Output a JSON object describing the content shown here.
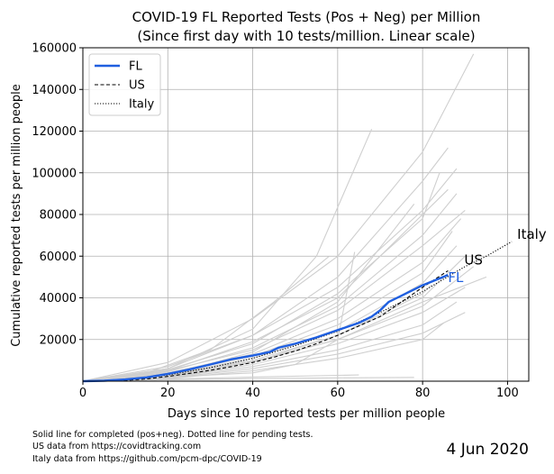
{
  "footer": {
    "line1": "Solid line for completed (pos+neg). Dotted line for pending tests.",
    "line2": "US data from https://covidtracking.com",
    "line3": "Italy data from https://github.com/pcm-dpc/COVID-19",
    "date": "4 Jun 2020"
  },
  "chart_data": {
    "type": "line",
    "title": "COVID-19 FL Reported Tests (Pos + Neg) per Million",
    "subtitle": "(Since first day with 10 tests/million. Linear scale)",
    "xlabel": "Days since 10 reported tests per million people",
    "ylabel": "Cumulative reported tests per million people",
    "xlim": [
      0,
      105
    ],
    "ylim": [
      0,
      160000
    ],
    "xticks": [
      0,
      20,
      40,
      60,
      80,
      100
    ],
    "yticks": [
      20000,
      40000,
      60000,
      80000,
      100000,
      120000,
      140000,
      160000
    ],
    "grid": true,
    "legend_position": "top-left",
    "legend": [
      "FL",
      "US",
      "Italy"
    ],
    "colors": {
      "FL": "#1f5fe0",
      "US": "#000000",
      "Italy": "#000000",
      "background_states": "#cfcfcf"
    },
    "series": [
      {
        "name": "FL",
        "style": "solid",
        "end_label": "FL",
        "x": [
          0,
          5,
          10,
          15,
          20,
          25,
          30,
          35,
          40,
          44,
          46,
          50,
          55,
          60,
          65,
          68,
          70,
          72,
          75,
          80,
          86
        ],
        "y": [
          0,
          200,
          800,
          1800,
          3500,
          5600,
          8000,
          10500,
          12300,
          14000,
          16000,
          18000,
          21000,
          24500,
          28000,
          31000,
          34000,
          38000,
          41000,
          46000,
          51000
        ]
      },
      {
        "name": "US",
        "style": "dashed",
        "end_label": "US",
        "x": [
          0,
          5,
          10,
          15,
          20,
          25,
          30,
          35,
          40,
          45,
          50,
          55,
          60,
          65,
          70,
          75,
          80,
          86
        ],
        "y": [
          0,
          100,
          400,
          1100,
          2300,
          3700,
          5200,
          7000,
          9000,
          11500,
          14500,
          18000,
          22000,
          26500,
          31000,
          38000,
          45000,
          53000
        ]
      },
      {
        "name": "Italy",
        "style": "dotted",
        "end_label": "Italy",
        "x": [
          0,
          10,
          20,
          30,
          40,
          50,
          60,
          70,
          80,
          90,
          95,
          101
        ],
        "y": [
          0,
          500,
          3000,
          6500,
          11000,
          17000,
          24000,
          33000,
          43000,
          55000,
          60000,
          67000
        ]
      }
    ],
    "background_series": [
      {
        "x": [
          0,
          20,
          40,
          60,
          80,
          92
        ],
        "y": [
          0,
          9000,
          30000,
          60000,
          110000,
          157000
        ]
      },
      {
        "x": [
          0,
          20,
          40,
          55,
          68
        ],
        "y": [
          0,
          6000,
          25000,
          60000,
          121000
        ]
      },
      {
        "x": [
          0,
          20,
          40,
          60,
          80,
          88
        ],
        "y": [
          0,
          7000,
          22000,
          45000,
          82000,
          102000
        ]
      },
      {
        "x": [
          0,
          20,
          40,
          60,
          80,
          86
        ],
        "y": [
          0,
          5000,
          19000,
          40000,
          80000,
          92000
        ]
      },
      {
        "x": [
          0,
          20,
          40,
          60,
          80,
          90
        ],
        "y": [
          0,
          5000,
          15000,
          34000,
          65000,
          82000
        ]
      },
      {
        "x": [
          0,
          20,
          40,
          60,
          80,
          89
        ],
        "y": [
          0,
          4000,
          13000,
          30000,
          57000,
          78000
        ]
      },
      {
        "x": [
          0,
          20,
          40,
          60,
          80,
          87
        ],
        "y": [
          0,
          3500,
          12000,
          27000,
          52000,
          72000
        ]
      },
      {
        "x": [
          0,
          20,
          40,
          60,
          80,
          88
        ],
        "y": [
          0,
          3000,
          11000,
          24000,
          47000,
          65000
        ]
      },
      {
        "x": [
          0,
          20,
          40,
          60,
          80,
          95
        ],
        "y": [
          0,
          2500,
          9000,
          20000,
          38000,
          50000
        ]
      },
      {
        "x": [
          0,
          20,
          40,
          60,
          80,
          90
        ],
        "y": [
          0,
          2000,
          8000,
          18000,
          33000,
          45000
        ]
      },
      {
        "x": [
          0,
          20,
          40,
          60,
          80,
          88
        ],
        "y": [
          0,
          1800,
          7000,
          15000,
          27000,
          38000
        ]
      },
      {
        "x": [
          0,
          20,
          40,
          60,
          80,
          90
        ],
        "y": [
          0,
          1500,
          6000,
          13000,
          23000,
          33000
        ]
      },
      {
        "x": [
          0,
          20,
          40,
          60,
          80,
          85
        ],
        "y": [
          0,
          1200,
          5000,
          11000,
          20000,
          28000
        ]
      },
      {
        "x": [
          0,
          15,
          30,
          45,
          58
        ],
        "y": [
          0,
          4000,
          15000,
          38000,
          60000
        ]
      },
      {
        "x": [
          0,
          20,
          40,
          60,
          78
        ],
        "y": [
          0,
          3000,
          14000,
          38000,
          85000
        ]
      },
      {
        "x": [
          0,
          20,
          40,
          50,
          60,
          64
        ],
        "y": [
          0,
          2000,
          4000,
          8000,
          20000,
          62000
        ]
      },
      {
        "x": [
          0,
          20,
          40,
          60,
          80,
          86
        ],
        "y": [
          0,
          6000,
          22000,
          50000,
          96000,
          112000
        ]
      },
      {
        "x": [
          0,
          20,
          40,
          60,
          80,
          88
        ],
        "y": [
          0,
          4500,
          16000,
          36000,
          70000,
          90000
        ]
      },
      {
        "x": [
          0,
          20,
          40,
          60,
          80,
          82
        ],
        "y": [
          0,
          2200,
          9000,
          22000,
          42000,
          46000
        ]
      },
      {
        "x": [
          0,
          20,
          40,
          60,
          65
        ],
        "y": [
          0,
          1000,
          2000,
          2800,
          3000
        ]
      },
      {
        "x": [
          0,
          20,
          40,
          60,
          78
        ],
        "y": [
          0,
          700,
          1200,
          1600,
          1800
        ]
      },
      {
        "x": [
          0,
          20,
          40,
          60,
          80,
          84
        ],
        "y": [
          0,
          5500,
          18000,
          42000,
          78000,
          100000
        ]
      },
      {
        "x": [
          0,
          20,
          40,
          60,
          80,
          90
        ],
        "y": [
          0,
          3200,
          10000,
          22000,
          40000,
          60000
        ]
      },
      {
        "x": [
          0,
          20,
          40,
          60,
          80,
          92
        ],
        "y": [
          0,
          2800,
          9500,
          20000,
          36000,
          55000
        ]
      }
    ]
  }
}
